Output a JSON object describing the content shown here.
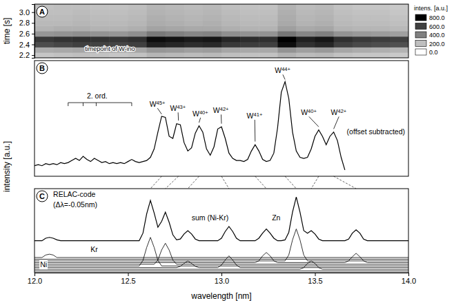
{
  "chart_data": [
    {
      "type": "heatmap",
      "panel": "A",
      "ylabel": "time [s]",
      "xlim": [
        12,
        14
      ],
      "ylim": [
        2.15,
        3.15
      ],
      "yticks": [
        2.2,
        2.4,
        2.6,
        2.8,
        {
          "value": 3,
          "label": "3.0"
        }
      ],
      "tick_labels": "y",
      "x": [
        12.05,
        12.15,
        12.25,
        12.35,
        12.45,
        12.55,
        12.65,
        12.75,
        12.85,
        12.95,
        13.05,
        13.15,
        13.25,
        13.35,
        13.45,
        13.55,
        13.65,
        13.75,
        13.85,
        13.95
      ],
      "y": [
        2.2,
        2.3,
        2.4,
        2.5,
        2.6,
        2.7,
        2.8,
        2.9,
        3.0,
        3.1
      ],
      "values": [
        [
          180,
          190,
          200,
          190,
          180,
          190,
          230,
          220,
          210,
          220,
          200,
          190,
          190,
          240,
          210,
          220,
          190,
          180,
          180,
          170
        ],
        [
          260,
          270,
          280,
          270,
          260,
          280,
          330,
          320,
          300,
          310,
          280,
          270,
          270,
          340,
          300,
          320,
          280,
          260,
          250,
          240
        ],
        [
          560,
          580,
          600,
          590,
          580,
          600,
          700,
          680,
          660,
          670,
          620,
          610,
          600,
          760,
          650,
          680,
          600,
          570,
          560,
          550
        ],
        [
          620,
          640,
          650,
          640,
          630,
          650,
          760,
          740,
          720,
          730,
          680,
          660,
          650,
          800,
          700,
          730,
          650,
          620,
          610,
          600
        ],
        [
          330,
          340,
          350,
          340,
          330,
          350,
          420,
          400,
          380,
          390,
          350,
          340,
          340,
          430,
          380,
          400,
          340,
          320,
          310,
          300
        ],
        [
          240,
          250,
          250,
          240,
          240,
          250,
          290,
          280,
          270,
          270,
          250,
          240,
          240,
          300,
          270,
          280,
          240,
          230,
          230,
          220
        ],
        [
          220,
          220,
          230,
          220,
          220,
          230,
          260,
          250,
          240,
          250,
          230,
          220,
          220,
          270,
          240,
          250,
          220,
          210,
          210,
          200
        ],
        [
          210,
          210,
          220,
          210,
          210,
          220,
          250,
          240,
          230,
          240,
          220,
          210,
          210,
          260,
          230,
          240,
          210,
          200,
          200,
          190
        ],
        [
          200,
          200,
          210,
          200,
          200,
          210,
          240,
          230,
          220,
          230,
          210,
          200,
          200,
          250,
          220,
          230,
          200,
          190,
          190,
          180
        ],
        [
          190,
          200,
          200,
          190,
          190,
          200,
          230,
          220,
          210,
          220,
          200,
          190,
          190,
          240,
          210,
          220,
          190,
          180,
          180,
          170
        ]
      ],
      "colorbar": {
        "title": "intens. [a.u.]",
        "range": [
          0,
          800
        ],
        "ticks": [
          {
            "value": 800,
            "label": "800.0"
          },
          {
            "value": 600,
            "label": "600.0"
          },
          {
            "value": 400,
            "label": "400.0"
          },
          {
            "value": 200,
            "label": "200.0"
          },
          {
            "value": 0,
            "label": "0.0"
          }
        ]
      },
      "annotations": [
        {
          "text": "timepoint of W-ino",
          "x": 12.27,
          "y": 2.28
        }
      ]
    },
    {
      "type": "line",
      "panel": "B",
      "ylabel": "intensity [a.u.]",
      "xlim": [
        12,
        14
      ],
      "ylim": [
        0,
        1.1
      ],
      "tick_labels": false,
      "x": [
        12.0,
        12.02,
        12.04,
        12.06,
        12.08,
        12.1,
        12.12,
        12.14,
        12.16,
        12.18,
        12.2,
        12.22,
        12.24,
        12.26,
        12.28,
        12.3,
        12.32,
        12.34,
        12.36,
        12.38,
        12.4,
        12.42,
        12.44,
        12.46,
        12.48,
        12.5,
        12.52,
        12.54,
        12.56,
        12.58,
        12.6,
        12.62,
        12.64,
        12.66,
        12.68,
        12.7,
        12.72,
        12.74,
        12.76,
        12.78,
        12.8,
        12.82,
        12.84,
        12.86,
        12.88,
        12.9,
        12.92,
        12.94,
        12.96,
        12.98,
        13.0,
        13.02,
        13.04,
        13.06,
        13.08,
        13.1,
        13.12,
        13.14,
        13.16,
        13.18,
        13.2,
        13.22,
        13.24,
        13.26,
        13.28,
        13.3,
        13.32,
        13.34,
        13.36,
        13.38,
        13.4,
        13.42,
        13.44,
        13.46,
        13.48,
        13.5,
        13.52,
        13.54,
        13.56,
        13.58,
        13.6,
        13.62,
        13.64,
        13.66
      ],
      "series": [
        {
          "color": "#000000",
          "values": [
            0.1,
            0.11,
            0.1,
            0.12,
            0.11,
            0.12,
            0.11,
            0.13,
            0.12,
            0.13,
            0.15,
            0.17,
            0.15,
            0.19,
            0.16,
            0.14,
            0.17,
            0.15,
            0.13,
            0.14,
            0.12,
            0.13,
            0.12,
            0.13,
            0.12,
            0.14,
            0.16,
            0.14,
            0.13,
            0.14,
            0.15,
            0.18,
            0.26,
            0.42,
            0.57,
            0.56,
            0.38,
            0.36,
            0.5,
            0.49,
            0.32,
            0.24,
            0.27,
            0.41,
            0.48,
            0.42,
            0.26,
            0.2,
            0.28,
            0.45,
            0.47,
            0.36,
            0.22,
            0.17,
            0.15,
            0.15,
            0.14,
            0.16,
            0.24,
            0.3,
            0.24,
            0.16,
            0.14,
            0.15,
            0.22,
            0.46,
            0.8,
            0.9,
            0.74,
            0.42,
            0.24,
            0.18,
            0.17,
            0.18,
            0.26,
            0.38,
            0.44,
            0.38,
            0.3,
            0.38,
            0.42,
            0.34,
            0.18,
            0.06
          ]
        }
      ],
      "annotations": [
        {
          "text": "2. ord.",
          "x": 12.28,
          "y": 0.74,
          "bracket_x": [
            12.18,
            12.26,
            12.33,
            12.52
          ],
          "bracket_y": 0.7
        },
        {
          "text": "W45+",
          "x": 12.615,
          "y": 0.66,
          "peak_x": 12.68,
          "peak_y": 0.59,
          "link_x": 12.62
        },
        {
          "text": "W43+",
          "x": 12.725,
          "y": 0.62,
          "peak_x": 12.77,
          "peak_y": 0.53,
          "link_x": 12.7
        },
        {
          "text": "W40+",
          "x": 12.845,
          "y": 0.57,
          "peak_x": 12.88,
          "peak_y": 0.51,
          "link_x": 12.82
        },
        {
          "text": "W42+",
          "x": 12.955,
          "y": 0.6,
          "peak_x": 13.0,
          "peak_y": 0.5,
          "link_x": 13.04
        },
        {
          "text": "W41+",
          "x": 13.135,
          "y": 0.55,
          "peak_x": 13.18,
          "peak_y": 0.33,
          "link_x": 13.24
        },
        {
          "text": "W44+",
          "x": 13.285,
          "y": 0.98,
          "peak_x": 13.34,
          "peak_y": 0.92,
          "link_x": 13.4
        },
        {
          "text": "W40+",
          "x": 13.425,
          "y": 0.58,
          "peak_x": 13.52,
          "peak_y": 0.47,
          "link_x": 13.48
        },
        {
          "text": "W42+",
          "x": 13.585,
          "y": 0.58,
          "peak_x": 13.6,
          "peak_y": 0.45,
          "link_x": 13.72
        },
        {
          "text": "(offset subtracted)",
          "x": 13.67,
          "y": 0.4
        }
      ]
    },
    {
      "type": "line",
      "panel": "C",
      "xlabel": "wavelength [nm]",
      "xlim": [
        12,
        14
      ],
      "ylim": [
        0,
        1
      ],
      "xticks": [
        {
          "value": 12,
          "label": "12.0"
        },
        {
          "value": 12.5,
          "label": "12.5"
        },
        {
          "value": 13,
          "label": "13.0"
        },
        {
          "value": 13.5,
          "label": "13.5"
        },
        {
          "value": 14,
          "label": "14.0"
        }
      ],
      "tick_labels": "x",
      "series": [
        {
          "color": "#000000",
          "x": [
            12.0,
            12.04,
            12.06,
            12.08,
            12.1,
            12.12,
            12.14,
            12.56,
            12.58,
            12.6,
            12.62,
            12.64,
            12.66,
            12.68,
            12.7,
            12.72,
            12.74,
            12.76,
            12.78,
            12.8,
            12.82,
            12.84,
            12.86,
            12.88,
            12.98,
            13.0,
            13.02,
            13.04,
            13.06,
            13.08,
            13.1,
            13.18,
            13.2,
            13.22,
            13.24,
            13.26,
            13.28,
            13.3,
            13.32,
            13.34,
            13.36,
            13.38,
            13.4,
            13.42,
            13.44,
            13.46,
            13.48,
            13.5,
            13.52,
            13.54,
            13.66,
            13.68,
            13.7,
            13.72,
            13.74,
            13.76,
            13.78,
            14.0
          ],
          "values": [
            0.38,
            0.38,
            0.41,
            0.42,
            0.41,
            0.39,
            0.38,
            0.38,
            0.47,
            0.7,
            0.86,
            0.71,
            0.54,
            0.61,
            0.72,
            0.6,
            0.45,
            0.39,
            0.4,
            0.46,
            0.5,
            0.46,
            0.4,
            0.38,
            0.38,
            0.41,
            0.49,
            0.55,
            0.49,
            0.41,
            0.38,
            0.38,
            0.41,
            0.47,
            0.52,
            0.47,
            0.41,
            0.38,
            0.38,
            0.39,
            0.48,
            0.72,
            0.9,
            0.72,
            0.5,
            0.47,
            0.5,
            0.46,
            0.4,
            0.38,
            0.38,
            0.4,
            0.47,
            0.51,
            0.47,
            0.4,
            0.38,
            0.38
          ]
        },
        {
          "color": "#000000",
          "x": [
            12.0,
            12.56,
            12.58,
            12.6,
            12.62,
            12.64,
            12.66,
            12.68,
            14.0
          ],
          "values": [
            0.08,
            0.08,
            0.145,
            0.3,
            0.42,
            0.3,
            0.145,
            0.08,
            0.08
          ]
        },
        {
          "color": "#000000",
          "x": [
            12.0,
            12.64,
            12.66,
            12.68,
            12.7,
            12.72,
            12.74,
            12.76,
            14.0
          ],
          "values": [
            0.1,
            0.1,
            0.15,
            0.27,
            0.35,
            0.27,
            0.15,
            0.1,
            0.1
          ]
        },
        {
          "color": "#000000",
          "x": [
            12.0,
            12.76,
            12.78,
            12.8,
            12.82,
            12.84,
            12.86,
            12.88,
            12.98,
            13.0,
            13.02,
            13.04,
            13.06,
            13.08,
            13.1,
            14.0
          ],
          "values": [
            0.06,
            0.06,
            0.075,
            0.11,
            0.14,
            0.11,
            0.075,
            0.06,
            0.06,
            0.09,
            0.15,
            0.2,
            0.15,
            0.09,
            0.06,
            0.06
          ]
        },
        {
          "color": "#000000",
          "x": [
            12.0,
            13.18,
            13.2,
            13.22,
            13.24,
            13.26,
            13.28,
            13.3,
            13.66,
            13.68,
            13.7,
            13.72,
            13.74,
            13.76,
            13.78,
            14.0
          ],
          "values": [
            0.12,
            0.12,
            0.14,
            0.2,
            0.24,
            0.2,
            0.14,
            0.12,
            0.12,
            0.14,
            0.19,
            0.23,
            0.19,
            0.14,
            0.12,
            0.12
          ]
        },
        {
          "color": "#000000",
          "x": [
            12.0,
            13.34,
            13.36,
            13.38,
            13.4,
            13.42,
            13.44,
            13.46,
            14.0
          ],
          "values": [
            0.14,
            0.14,
            0.21,
            0.39,
            0.52,
            0.39,
            0.21,
            0.14,
            0.14
          ]
        },
        {
          "color": "#000000",
          "x": [
            12.0,
            13.42,
            13.44,
            13.46,
            13.48,
            13.5,
            13.52,
            13.54,
            14.0
          ],
          "values": [
            0.04,
            0.04,
            0.06,
            0.11,
            0.14,
            0.11,
            0.06,
            0.04,
            0.04
          ]
        },
        {
          "color": "#000000",
          "x": [
            12.0,
            12.04,
            12.06,
            12.08,
            12.1,
            12.12,
            14.0
          ],
          "values": [
            0.18,
            0.18,
            0.21,
            0.22,
            0.21,
            0.18,
            0.18
          ]
        },
        {
          "color": "#000000",
          "x": [
            12.0,
            14.0
          ],
          "values": [
            0.02,
            0.02
          ]
        },
        {
          "color": "#000000",
          "x": [
            12.0,
            14.0
          ],
          "values": [
            0.16,
            0.16
          ]
        }
      ],
      "annotations": [
        {
          "text": "RELAC-code",
          "x": 12.1,
          "y": 0.9
        },
        {
          "text": "(Δλ=-0.05nm)",
          "x": 12.1,
          "y": 0.78
        },
        {
          "text": "Kr",
          "x": 12.3,
          "y": 0.25
        },
        {
          "text": "Ni",
          "x": 12.03,
          "y": 0.065
        },
        {
          "text": "sum (Ni-Kr)",
          "x": 12.84,
          "y": 0.62
        },
        {
          "text": "Zn",
          "x": 13.27,
          "y": 0.62
        }
      ]
    }
  ]
}
